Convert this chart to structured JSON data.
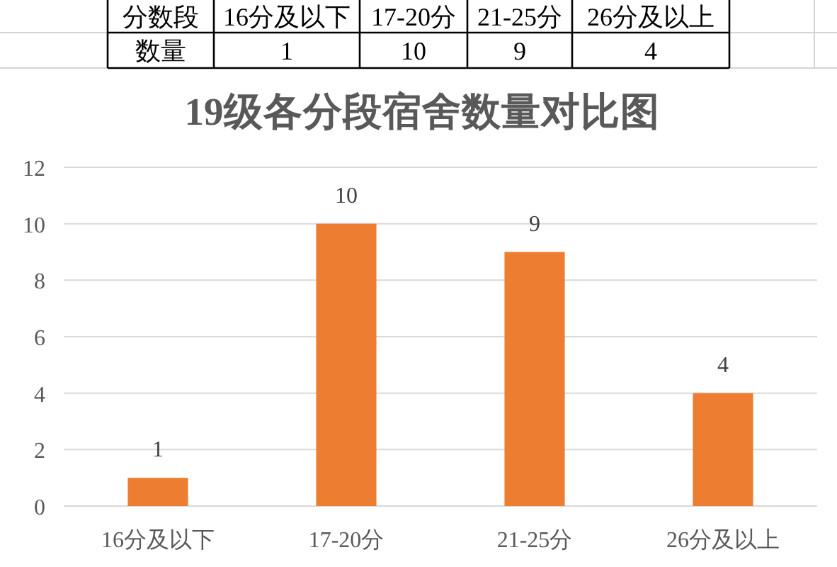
{
  "chart_data": {
    "type": "bar",
    "title": "19级各分段宿舍数量对比图",
    "categories": [
      "16分及以下",
      "17-20分",
      "21-25分",
      "26分及以上"
    ],
    "values": [
      1,
      10,
      9,
      4
    ],
    "color": "#ed7d31",
    "ylim": [
      0,
      12
    ],
    "yticks": [
      0,
      2,
      4,
      6,
      8,
      10,
      12
    ],
    "grid": "y",
    "value_labels": [
      "1",
      "10",
      "9",
      "4"
    ],
    "annotations": [
      "分数段",
      "数量"
    ]
  }
}
